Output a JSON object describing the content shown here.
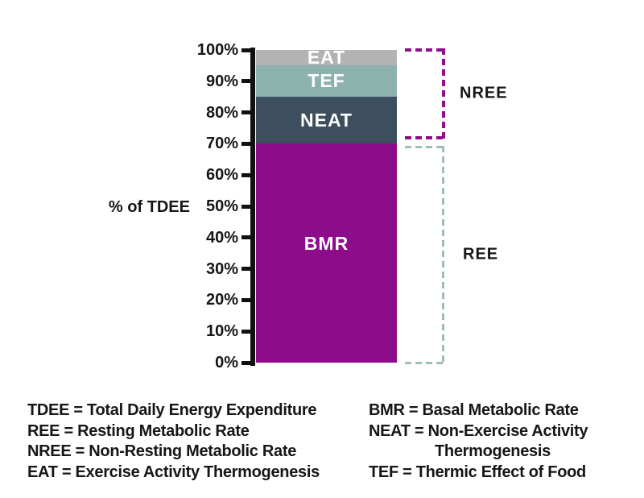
{
  "chart_data": {
    "type": "stacked-bar",
    "orientation": "vertical",
    "title": "",
    "ylabel": "% of TDEE",
    "xlabel": "",
    "ylim": [
      0,
      100
    ],
    "grid": false,
    "yticks": [
      {
        "label": "100%",
        "value": 100
      },
      {
        "label": "90%",
        "value": 90
      },
      {
        "label": "80%",
        "value": 80
      },
      {
        "label": "70%",
        "value": 70
      },
      {
        "label": "60%",
        "value": 60
      },
      {
        "label": "50%",
        "value": 50
      },
      {
        "label": "40%",
        "value": 40
      },
      {
        "label": "30%",
        "value": 30
      },
      {
        "label": "20%",
        "value": 20
      },
      {
        "label": "10%",
        "value": 10
      },
      {
        "label": "0%",
        "value": 0
      }
    ],
    "axis_color": "#111111",
    "bar": {
      "segments": [
        {
          "label": "EAT",
          "value": 5,
          "from": 95,
          "to": 100,
          "color": "#b3b3b4",
          "text_color": "#ffffff"
        },
        {
          "label": "TEF",
          "value": 10,
          "from": 85,
          "to": 95,
          "color": "#8db2ae",
          "text_color": "#ffffff"
        },
        {
          "label": "NEAT",
          "value": 15,
          "from": 70,
          "to": 85,
          "color": "#3d4f5e",
          "text_color": "#ffffff"
        },
        {
          "label": "BMR",
          "value": 70,
          "from": 0,
          "to": 70,
          "color": "#8e0b8c",
          "text_color": "#ffffff"
        }
      ]
    },
    "brackets": [
      {
        "label": "NREE",
        "from": 72,
        "to": 100,
        "color": "#8e0e8e",
        "style": "dashed"
      },
      {
        "label": "REE",
        "from": 0,
        "to": 69,
        "color": "#9fbcb8",
        "style": "dashed"
      }
    ],
    "legend_position": "bottom"
  },
  "legend": {
    "left_column": [
      {
        "text": "TDEE = Total Daily Energy Expenditure",
        "indent": false
      },
      {
        "text": "REE = Resting Metabolic Rate",
        "indent": false
      },
      {
        "text": "NREE = Non-Resting Metabolic Rate",
        "indent": false
      },
      {
        "text": "EAT = Exercise Activity Thermogenesis",
        "indent": false
      }
    ],
    "right_column": [
      {
        "text": "BMR = Basal Metabolic Rate",
        "indent": false
      },
      {
        "text": "NEAT = Non-Exercise Activity",
        "indent": false
      },
      {
        "text": "Thermogenesis",
        "indent": true
      },
      {
        "text": "TEF = Thermic Effect of Food",
        "indent": false
      }
    ]
  }
}
